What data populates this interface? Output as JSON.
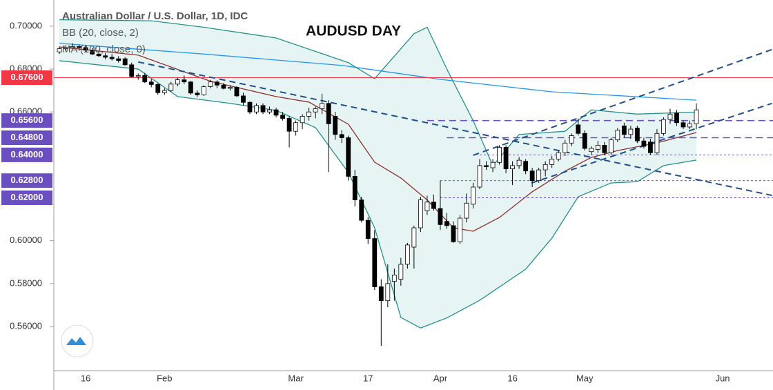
{
  "chart_data": {
    "type": "candlestick",
    "title": "Australian Dollar / U.S. Dollar, 1D, IDC",
    "annotation": "AUDUSD DAY",
    "categories": [
      null,
      null,
      null,
      null,
      "16",
      null,
      null,
      null,
      null,
      null,
      null,
      null,
      null,
      null,
      null,
      null,
      "Feb",
      null,
      null,
      null,
      null,
      null,
      null,
      null,
      null,
      null,
      null,
      null,
      null,
      null,
      null,
      null,
      null,
      null,
      null,
      null,
      "Mar",
      null,
      null,
      null,
      null,
      null,
      null,
      null,
      null,
      null,
      null,
      "17",
      null,
      null,
      null,
      null,
      null,
      null,
      null,
      null,
      null,
      null,
      "Apr",
      null,
      null,
      null,
      null,
      null,
      null,
      null,
      null,
      null,
      null,
      "16",
      null,
      null,
      null,
      null,
      null,
      null,
      null,
      null,
      null,
      null,
      "May",
      null,
      null,
      null,
      null,
      null,
      null,
      null,
      null,
      null,
      null,
      null,
      null,
      null,
      null,
      null,
      null,
      null,
      null,
      null,
      null,
      "Jun"
    ],
    "open": [
      0.688,
      0.6895,
      0.69,
      0.6905,
      0.69,
      0.6888,
      0.687,
      0.6862,
      0.6855,
      0.6848,
      0.6848,
      0.682,
      0.6765,
      0.677,
      0.674,
      0.6728,
      0.669,
      0.67,
      0.673,
      0.675,
      0.674,
      0.6688,
      0.668,
      0.6718,
      0.674,
      0.6725,
      0.671,
      0.6715,
      0.6675,
      0.6645,
      0.66,
      0.663,
      0.66,
      0.661,
      0.6585,
      0.657,
      0.651,
      0.655,
      0.658,
      0.66,
      0.6615,
      0.664,
      0.658,
      0.6495,
      0.648,
      0.63,
      0.619,
      0.6095,
      0.601,
      0.5785,
      0.572,
      0.581,
      0.582,
      0.589,
      0.597,
      0.606,
      0.614,
      0.618,
      0.615,
      0.609,
      0.607,
      0.5995,
      0.6105,
      0.617,
      0.625,
      0.635,
      0.634,
      0.6365,
      0.6435,
      0.6335,
      0.635,
      0.637,
      0.6325,
      0.628,
      0.633,
      0.6355,
      0.638,
      0.641,
      0.6455,
      0.654,
      0.65,
      0.6415,
      0.6425,
      0.6445,
      0.641,
      0.647,
      0.6535,
      0.6495,
      0.6525,
      0.6465,
      0.646,
      0.641,
      0.65,
      0.6565,
      0.6595,
      0.655,
      0.653,
      0.6545,
      null,
      null,
      null,
      null
    ],
    "high": [
      0.6905,
      0.6912,
      0.692,
      0.6915,
      0.6912,
      0.69,
      0.688,
      0.6875,
      0.687,
      0.686,
      0.6855,
      0.683,
      0.678,
      0.6782,
      0.6755,
      0.6735,
      0.671,
      0.674,
      0.676,
      0.677,
      0.6745,
      0.67,
      0.6725,
      0.675,
      0.6748,
      0.6735,
      0.6725,
      0.672,
      0.669,
      0.665,
      0.664,
      0.664,
      0.6625,
      0.662,
      0.66,
      0.658,
      0.656,
      0.659,
      0.662,
      0.6625,
      0.6685,
      0.6655,
      0.66,
      0.6515,
      0.649,
      0.633,
      0.6205,
      0.611,
      0.605,
      0.582,
      0.589,
      0.587,
      0.592,
      0.599,
      0.607,
      0.6205,
      0.621,
      0.6215,
      0.628,
      0.613,
      0.609,
      0.612,
      0.622,
      0.627,
      0.638,
      0.637,
      0.638,
      0.6445,
      0.6445,
      0.637,
      0.639,
      0.638,
      0.634,
      0.634,
      0.637,
      0.6395,
      0.642,
      0.647,
      0.65,
      0.657,
      0.6515,
      0.644,
      0.6465,
      0.646,
      0.648,
      0.6525,
      0.655,
      0.6535,
      0.6535,
      0.648,
      0.6475,
      0.652,
      0.6575,
      0.6615,
      0.661,
      0.656,
      0.656,
      0.664,
      null,
      null,
      null,
      null
    ],
    "low": [
      0.687,
      0.6885,
      0.689,
      0.6885,
      0.688,
      0.6865,
      0.6855,
      0.6845,
      0.684,
      0.683,
      0.6815,
      0.676,
      0.675,
      0.6735,
      0.6715,
      0.668,
      0.668,
      0.6695,
      0.672,
      0.673,
      0.668,
      0.667,
      0.6675,
      0.671,
      0.671,
      0.6705,
      0.67,
      0.667,
      0.663,
      0.659,
      0.659,
      0.659,
      0.659,
      0.6575,
      0.656,
      0.6435,
      0.649,
      0.652,
      0.656,
      0.657,
      0.659,
      0.632,
      0.647,
      0.6455,
      0.628,
      0.616,
      0.6085,
      0.5985,
      0.577,
      0.551,
      0.569,
      0.572,
      0.579,
      0.587,
      0.587,
      0.604,
      0.612,
      0.614,
      0.605,
      0.6055,
      0.599,
      0.5985,
      0.6085,
      0.615,
      0.624,
      0.633,
      0.632,
      0.6355,
      0.6315,
      0.626,
      0.6335,
      0.631,
      0.625,
      0.627,
      0.63,
      0.634,
      0.637,
      0.6395,
      0.644,
      0.649,
      0.642,
      0.64,
      0.641,
      0.64,
      0.64,
      0.646,
      0.648,
      0.6475,
      0.6455,
      0.643,
      0.64,
      0.64,
      0.649,
      0.6545,
      0.6535,
      0.652,
      0.652,
      0.652,
      null,
      null,
      null,
      null
    ],
    "close": [
      0.6895,
      0.69,
      0.6905,
      0.69,
      0.6888,
      0.687,
      0.6862,
      0.6855,
      0.6848,
      0.684,
      0.682,
      0.6765,
      0.677,
      0.674,
      0.6728,
      0.669,
      0.67,
      0.673,
      0.675,
      0.674,
      0.6688,
      0.668,
      0.6718,
      0.674,
      0.6725,
      0.671,
      0.6715,
      0.6675,
      0.6645,
      0.66,
      0.663,
      0.66,
      0.661,
      0.6585,
      0.657,
      0.651,
      0.655,
      0.658,
      0.66,
      0.6615,
      0.664,
      0.6545,
      0.6495,
      0.648,
      0.63,
      0.619,
      0.6095,
      0.601,
      0.5785,
      0.572,
      0.58,
      0.584,
      0.589,
      0.598,
      0.606,
      0.619,
      0.618,
      0.615,
      0.6075,
      0.607,
      0.5995,
      0.6105,
      0.6175,
      0.625,
      0.635,
      0.6345,
      0.6365,
      0.6435,
      0.6335,
      0.635,
      0.6375,
      0.6325,
      0.628,
      0.633,
      0.6355,
      0.638,
      0.641,
      0.6455,
      0.649,
      0.65,
      0.643,
      0.643,
      0.6445,
      0.641,
      0.647,
      0.6515,
      0.6495,
      0.652,
      0.6465,
      0.644,
      0.641,
      0.65,
      0.6565,
      0.659,
      0.655,
      0.653,
      0.6545,
      0.661,
      null,
      null,
      null,
      null
    ],
    "up_color": "#ffffff",
    "down_color": "#000000",
    "ylim": [
      0.5394,
      0.7122
    ],
    "yticks": [
      {
        "value": 0.56,
        "label": "0.56000"
      },
      {
        "value": 0.58,
        "label": "0.58000"
      },
      {
        "value": 0.6,
        "label": "0.60000"
      },
      {
        "value": 0.66,
        "label": "0.66000"
      },
      {
        "value": 0.68,
        "label": "0.68000"
      },
      {
        "value": 0.7,
        "label": "0.70000"
      }
    ],
    "bollinger": {
      "label": "BB (20, close, 2)",
      "fill": "#e6f4f3",
      "line_color": "#23918a",
      "basis_color": "#8e2e2e",
      "upper": {
        "x": [
          0,
          14,
          22,
          33,
          44,
          48,
          54,
          56,
          59,
          63,
          66,
          70,
          77,
          81,
          88,
          97
        ],
        "values": [
          0.703,
          0.7025,
          0.6995,
          0.6945,
          0.683,
          0.6755,
          0.6965,
          0.6995,
          0.68,
          0.656,
          0.635,
          0.6495,
          0.651,
          0.661,
          0.659,
          0.66
        ]
      },
      "lower": {
        "x": [
          0,
          12,
          18,
          26,
          33,
          39,
          44,
          48,
          52,
          55,
          59,
          64,
          71,
          75,
          79,
          84,
          88,
          92,
          97
        ],
        "values": [
          0.6839,
          0.68,
          0.6672,
          0.664,
          0.6607,
          0.6527,
          0.6318,
          0.606,
          0.5642,
          0.5593,
          0.564,
          0.5722,
          0.5867,
          0.6012,
          0.6205,
          0.6269,
          0.6275,
          0.635,
          0.6376
        ]
      },
      "basis": {
        "x": [
          0,
          12,
          23,
          33,
          38,
          44,
          48,
          52,
          56,
          60,
          63,
          67,
          72,
          77,
          81,
          85,
          91,
          97
        ],
        "values": [
          0.6903,
          0.6865,
          0.6743,
          0.6672,
          0.6646,
          0.6543,
          0.6366,
          0.6292,
          0.619,
          0.606,
          0.6044,
          0.6108,
          0.6228,
          0.6324,
          0.6388,
          0.642,
          0.6456,
          0.6504
        ]
      }
    },
    "ma": {
      "label": "MA (100, close, 0)",
      "color": "#2196f3",
      "x": [
        0,
        22,
        43,
        58,
        75,
        97
      ],
      "values": [
        0.692,
        0.687,
        0.6817,
        0.6752,
        0.6694,
        0.6655
      ]
    },
    "levels": [
      {
        "value": 0.676,
        "label": "0.67600",
        "color": "#f23645",
        "style": "solid",
        "start": 0
      },
      {
        "value": 0.656,
        "label": "0.65600",
        "color": "#6a4fc1",
        "style": "dashed",
        "start": 56
      },
      {
        "value": 0.648,
        "label": "0.64800",
        "color": "#6a4fc1",
        "style": "dashed",
        "start": 59
      },
      {
        "value": 0.64,
        "label": "0.64000",
        "color": "#6a4fc1",
        "style": "dotted",
        "start": 64
      },
      {
        "value": 0.628,
        "label": "0.62800",
        "color": "#6a4fc1",
        "style": "dotted",
        "start": 58
      },
      {
        "value": 0.62,
        "label": "0.62000",
        "color": "#6a4fc1",
        "style": "dotted",
        "start": 58
      }
    ],
    "trend_lines": {
      "color": "#1f4e8c",
      "lines": [
        {
          "from": [
            12,
            0.6833
          ],
          "to": [
            108.5,
            0.6211
          ]
        },
        {
          "from": [
            63,
            0.6398
          ],
          "to": [
            108.5,
            0.6891
          ]
        },
        {
          "from": [
            71.9,
            0.6269
          ],
          "to": [
            108.5,
            0.664
          ]
        }
      ]
    }
  }
}
